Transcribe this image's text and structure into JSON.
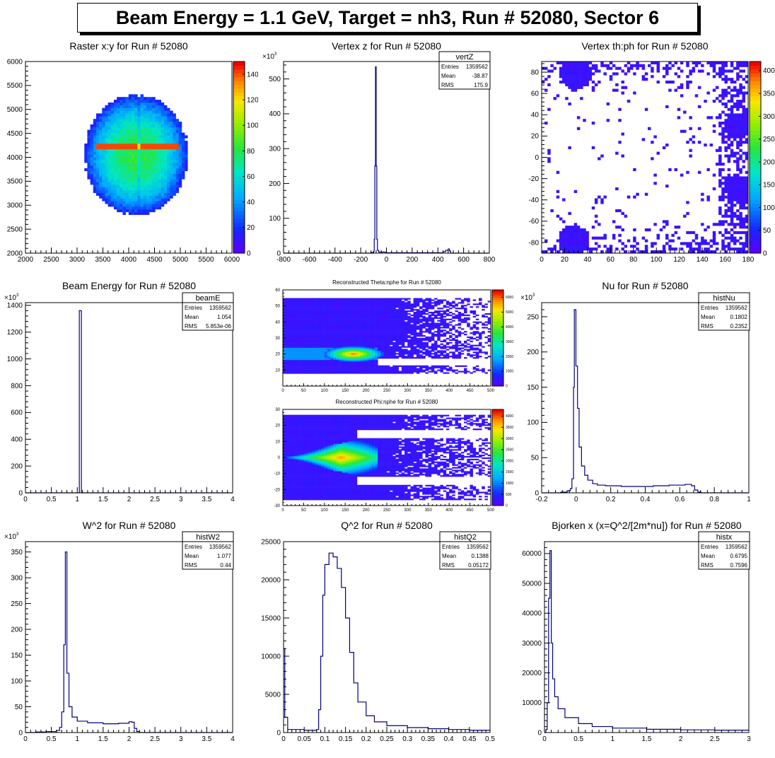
{
  "page_title": "Beam Energy = 1.1 GeV, Target = nh3, Run # 52080, Sector 6",
  "colors": {
    "line": "#000080",
    "frame": "#000000"
  },
  "chart_data": [
    {
      "id": "raster",
      "type": "heatmap",
      "title": "Raster x:y for Run # 52080",
      "xlim": [
        2000,
        6000
      ],
      "ylim": [
        2000,
        6000
      ],
      "xticks": [
        "2000",
        "2500",
        "3000",
        "3500",
        "4000",
        "4500",
        "5000",
        "5500",
        "6000"
      ],
      "yticks": [
        "2000",
        "2500",
        "3000",
        "3500",
        "4000",
        "4500",
        "5000",
        "5500",
        "6000"
      ],
      "zticks": [
        "0",
        "20",
        "40",
        "60",
        "80",
        "100",
        "120",
        "140"
      ],
      "zmax": 150,
      "blob": {
        "cx": 4150,
        "cy": 4050,
        "rx": 1000,
        "ry": 1250
      },
      "hot_lines": [
        {
          "x1": 3350,
          "x2": 5000,
          "y": 4250
        }
      ]
    },
    {
      "id": "vertz",
      "type": "bar",
      "title": "Vertex z for Run # 52080",
      "xlim": [
        -800,
        800
      ],
      "ylim": [
        0,
        550
      ],
      "xticks": [
        "-800",
        "-600",
        "-400",
        "-200",
        "0",
        "200",
        "400",
        "600",
        "800"
      ],
      "yticks": [
        "0",
        "100",
        "200",
        "300",
        "400",
        "500"
      ],
      "yexp": "3",
      "stats": {
        "name": "vertZ",
        "rows": [
          [
            "Entries",
            "1359562"
          ],
          [
            "Mean",
            "-38.87"
          ],
          [
            "RMS",
            "175.9"
          ]
        ]
      },
      "points": [
        [
          -800,
          0
        ],
        [
          -150,
          0
        ],
        [
          -120,
          2
        ],
        [
          -100,
          5
        ],
        [
          -95,
          40
        ],
        [
          -90,
          250
        ],
        [
          -85,
          535
        ],
        [
          -80,
          250
        ],
        [
          -75,
          40
        ],
        [
          -70,
          8
        ],
        [
          -60,
          3
        ],
        [
          0,
          1
        ],
        [
          400,
          1
        ],
        [
          440,
          4
        ],
        [
          460,
          8
        ],
        [
          480,
          12
        ],
        [
          490,
          6
        ],
        [
          500,
          0
        ],
        [
          800,
          0
        ]
      ]
    },
    {
      "id": "thph",
      "type": "heatmap",
      "title": "Vertex th:ph for Run # 52080",
      "xlim": [
        0,
        180
      ],
      "ylim": [
        -90,
        90
      ],
      "xticks": [
        "0",
        "20",
        "40",
        "60",
        "80",
        "100",
        "120",
        "140",
        "160",
        "180"
      ],
      "yticks": [
        "-80",
        "-60",
        "-40",
        "-20",
        "0",
        "20",
        "40",
        "60",
        "80"
      ],
      "zticks": [
        "0",
        "50",
        "100",
        "150",
        "200",
        "250",
        "300",
        "350",
        "400"
      ],
      "zmax": 420,
      "clusters": [
        {
          "cx": 30,
          "cy": 78,
          "r": 14
        },
        {
          "cx": 28,
          "cy": -78,
          "r": 14
        },
        {
          "cx": 172,
          "cy": 30,
          "r": 12
        },
        {
          "cx": 172,
          "cy": -30,
          "r": 12
        }
      ]
    },
    {
      "id": "beame",
      "type": "bar",
      "title": "Beam Energy for Run # 52080",
      "xlim": [
        0,
        4
      ],
      "ylim": [
        0,
        1420
      ],
      "xticks": [
        "0",
        "0.5",
        "1",
        "1.5",
        "2",
        "2.5",
        "3",
        "3.5",
        "4"
      ],
      "yticks": [
        "0",
        "200",
        "400",
        "600",
        "800",
        "1000",
        "1200",
        "1400"
      ],
      "yexp": "3",
      "stats": {
        "name": "beamE",
        "rows": [
          [
            "Entries",
            "1359562"
          ],
          [
            "Mean",
            "1.054"
          ],
          [
            "RMS",
            "5.853e-06"
          ]
        ]
      },
      "points": [
        [
          0,
          0
        ],
        [
          1.04,
          0
        ],
        [
          1.04,
          1360
        ],
        [
          1.08,
          1360
        ],
        [
          1.08,
          0
        ],
        [
          4,
          0
        ]
      ]
    },
    {
      "id": "thnphe",
      "type": "heatmap",
      "title": "Reconstructed Theta:nphe for Run # 52080",
      "xlim": [
        0,
        500
      ],
      "ylim": [
        0,
        60
      ],
      "xticks": [
        "0",
        "50",
        "100",
        "150",
        "200",
        "250",
        "300",
        "350",
        "400",
        "450",
        "500"
      ],
      "yticks": [
        "10",
        "20",
        "30",
        "40",
        "50",
        "60"
      ],
      "zticks": [
        "0",
        "1000",
        "2000",
        "3000",
        "4000",
        "5000",
        "6000"
      ],
      "zmax": 6500
    },
    {
      "id": "phnphe",
      "type": "heatmap",
      "title": "Reconstructed Phi:nphe for Run # 52080",
      "xlim": [
        0,
        500
      ],
      "ylim": [
        -30,
        30
      ],
      "xticks": [
        "0",
        "50",
        "100",
        "150",
        "200",
        "250",
        "300",
        "350",
        "400",
        "450",
        "500"
      ],
      "yticks": [
        "-30",
        "-20",
        "-10",
        "0",
        "10",
        "20",
        "30"
      ],
      "zticks": [
        "0",
        "500",
        "1000",
        "1500",
        "2000",
        "2500",
        "3000",
        "3500",
        "4000"
      ],
      "zmax": 4300
    },
    {
      "id": "nu",
      "type": "line",
      "title": "Nu for Run # 52080",
      "xlim": [
        -0.2,
        1.1
      ],
      "ylim": [
        0,
        270
      ],
      "xticks": [
        "-0.2",
        "0",
        "0.2",
        "0.4",
        "0.6",
        "0.8",
        "1"
      ],
      "yticks": [
        "0",
        "50",
        "100",
        "150",
        "200",
        "250"
      ],
      "yexp": "3",
      "stats": {
        "name": "histNu",
        "rows": [
          [
            "Entries",
            "1359562"
          ],
          [
            "Mean",
            "0.1802"
          ],
          [
            "RMS",
            "0.2352"
          ]
        ]
      },
      "points": [
        [
          -0.2,
          0
        ],
        [
          -0.12,
          0
        ],
        [
          -0.08,
          1
        ],
        [
          -0.04,
          3
        ],
        [
          -0.02,
          6
        ],
        [
          -0.01,
          20
        ],
        [
          0.0,
          150
        ],
        [
          0.005,
          260
        ],
        [
          0.015,
          180
        ],
        [
          0.025,
          120
        ],
        [
          0.035,
          65
        ],
        [
          0.05,
          38
        ],
        [
          0.07,
          25
        ],
        [
          0.09,
          18
        ],
        [
          0.12,
          13
        ],
        [
          0.15,
          11
        ],
        [
          0.2,
          10
        ],
        [
          0.3,
          9
        ],
        [
          0.4,
          9
        ],
        [
          0.5,
          10
        ],
        [
          0.6,
          11
        ],
        [
          0.7,
          12
        ],
        [
          0.74,
          10
        ],
        [
          0.76,
          4
        ],
        [
          0.78,
          1
        ],
        [
          0.8,
          0
        ],
        [
          1.1,
          0
        ]
      ]
    },
    {
      "id": "w2",
      "type": "line",
      "title": "W^2 for Run # 52080",
      "xlim": [
        0,
        4
      ],
      "ylim": [
        0,
        370
      ],
      "xticks": [
        "0",
        "0.5",
        "1",
        "1.5",
        "2",
        "2.5",
        "3",
        "3.5",
        "4"
      ],
      "yticks": [
        "0",
        "50",
        "100",
        "150",
        "200",
        "250",
        "300",
        "350"
      ],
      "yexp": "3",
      "stats": {
        "name": "histW2",
        "rows": [
          [
            "Entries",
            "1359562"
          ],
          [
            "Mean",
            "1.077"
          ],
          [
            "RMS",
            "0.44"
          ]
        ]
      },
      "points": [
        [
          0,
          0
        ],
        [
          0.2,
          1
        ],
        [
          0.4,
          2
        ],
        [
          0.6,
          4
        ],
        [
          0.66,
          10
        ],
        [
          0.7,
          40
        ],
        [
          0.74,
          170
        ],
        [
          0.77,
          350
        ],
        [
          0.8,
          115
        ],
        [
          0.84,
          50
        ],
        [
          0.9,
          30
        ],
        [
          1.0,
          22
        ],
        [
          1.2,
          19
        ],
        [
          1.5,
          17
        ],
        [
          1.8,
          18
        ],
        [
          2.0,
          21
        ],
        [
          2.05,
          20
        ],
        [
          2.1,
          8
        ],
        [
          2.15,
          2
        ],
        [
          2.2,
          0
        ],
        [
          4,
          0
        ]
      ]
    },
    {
      "id": "q2",
      "type": "line",
      "title": "Q^2 for Run # 52080",
      "xlim": [
        0,
        0.5
      ],
      "ylim": [
        0,
        25000
      ],
      "xticks": [
        "0",
        "0.05",
        "0.1",
        "0.15",
        "0.2",
        "0.25",
        "0.3",
        "0.35",
        "0.4",
        "0.45",
        "0.5"
      ],
      "yticks": [
        "0",
        "5000",
        "10000",
        "15000",
        "20000",
        "25000"
      ],
      "stats": {
        "name": "histQ2",
        "rows": [
          [
            "Entries",
            "1359562"
          ],
          [
            "Mean",
            "0.1388"
          ],
          [
            "RMS",
            "0.05172"
          ]
        ]
      },
      "points": [
        [
          0,
          11000
        ],
        [
          0.003,
          2000
        ],
        [
          0.01,
          400
        ],
        [
          0.05,
          300
        ],
        [
          0.08,
          400
        ],
        [
          0.085,
          3000
        ],
        [
          0.09,
          10000
        ],
        [
          0.095,
          18000
        ],
        [
          0.1,
          22000
        ],
        [
          0.11,
          23500
        ],
        [
          0.12,
          23000
        ],
        [
          0.13,
          21500
        ],
        [
          0.14,
          19000
        ],
        [
          0.15,
          15000
        ],
        [
          0.16,
          10500
        ],
        [
          0.17,
          6500
        ],
        [
          0.18,
          4000
        ],
        [
          0.2,
          2200
        ],
        [
          0.22,
          1400
        ],
        [
          0.25,
          900
        ],
        [
          0.3,
          650
        ],
        [
          0.35,
          500
        ],
        [
          0.4,
          400
        ],
        [
          0.45,
          300
        ],
        [
          0.5,
          250
        ]
      ]
    },
    {
      "id": "bjx",
      "type": "line",
      "title": "Bjorken x  (x=Q^2/[2m*nu]) for Run # 52080",
      "xlim": [
        0,
        3
      ],
      "ylim": [
        0,
        64000
      ],
      "xticks": [
        "0",
        "0.5",
        "1",
        "1.5",
        "2",
        "2.5",
        "3"
      ],
      "yticks": [
        "0",
        "10000",
        "20000",
        "30000",
        "40000",
        "50000",
        "60000"
      ],
      "stats": {
        "name": "histx",
        "rows": [
          [
            "Entries",
            "1359562"
          ],
          [
            "Mean",
            "0.6795"
          ],
          [
            "RMS",
            "0.7596"
          ]
        ]
      },
      "points": [
        [
          0,
          0
        ],
        [
          0.02,
          1000
        ],
        [
          0.04,
          10000
        ],
        [
          0.06,
          45000
        ],
        [
          0.08,
          61000
        ],
        [
          0.1,
          30000
        ],
        [
          0.12,
          18000
        ],
        [
          0.15,
          12000
        ],
        [
          0.2,
          8000
        ],
        [
          0.3,
          5000
        ],
        [
          0.5,
          3000
        ],
        [
          0.7,
          2000
        ],
        [
          1.0,
          1500
        ],
        [
          1.5,
          1100
        ],
        [
          2.0,
          900
        ],
        [
          2.5,
          800
        ],
        [
          3.0,
          700
        ]
      ]
    }
  ]
}
